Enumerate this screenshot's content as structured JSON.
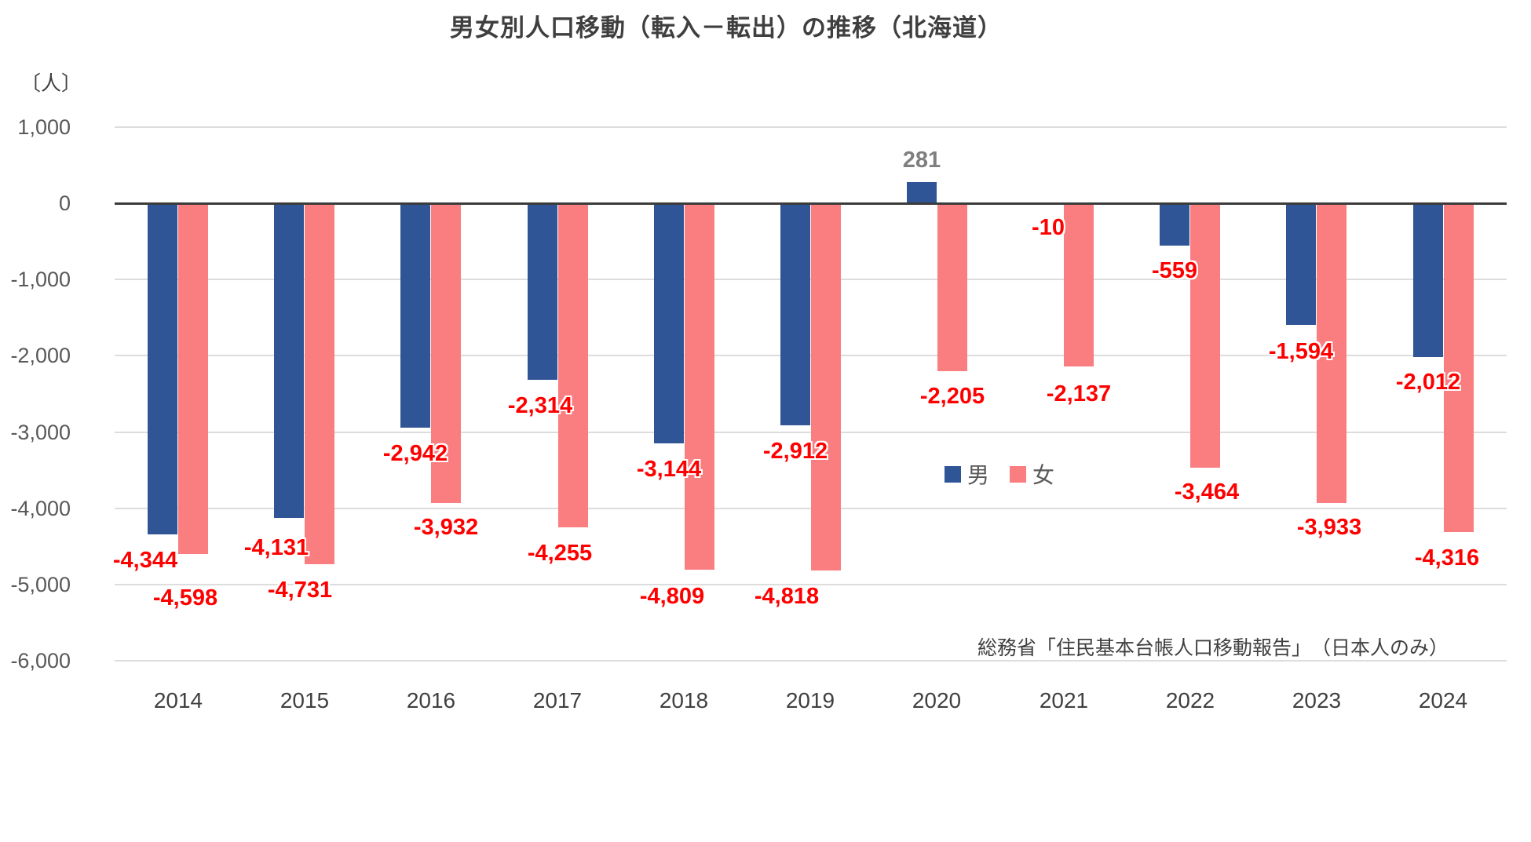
{
  "title": "男女別人口移動（転入－転出）の推移（北海道）",
  "unit_label": "〔人〕",
  "source": "総務省「住民基本台帳人口移動報告」　（日本人のみ）",
  "legend": {
    "male": "男",
    "female": "女"
  },
  "colors": {
    "male_bar": "#2f5597",
    "female_bar": "#fa7d80",
    "negative_label": "#ff0000",
    "positive_label": "#7f7f7f",
    "axis_line": "#3b3b3b",
    "gridline": "#dddddd",
    "tick_text": "#595959"
  },
  "chart_data": {
    "type": "bar",
    "categories": [
      "2014",
      "2015",
      "2016",
      "2017",
      "2018",
      "2019",
      "2020",
      "2021",
      "2022",
      "2023",
      "2024"
    ],
    "series": [
      {
        "name": "男",
        "values": [
          -4344,
          -4131,
          -2942,
          -2314,
          -3144,
          -2912,
          281,
          -10,
          -559,
          -1594,
          -2012
        ],
        "labels": [
          "-4,344",
          "-4,131",
          "-2,942",
          "-2,314",
          "-3,144",
          "-2,912",
          "281",
          "-10",
          "-559",
          "-1,594",
          "-2,012"
        ]
      },
      {
        "name": "女",
        "values": [
          -4598,
          -4731,
          -3932,
          -4255,
          -4809,
          -4818,
          -2205,
          -2137,
          -3464,
          -3933,
          -4316
        ],
        "labels": [
          "-4,598",
          "-4,731",
          "-3,932",
          "-4,255",
          "-4,809",
          "-4,818",
          "-2,205",
          "-2,137",
          "-3,464",
          "-3,933",
          "-4,316"
        ]
      }
    ],
    "yticks": [
      {
        "value": 1000,
        "label": "1,000"
      },
      {
        "value": 0,
        "label": "0"
      },
      {
        "value": -1000,
        "label": "-1,000"
      },
      {
        "value": -2000,
        "label": "-2,000"
      },
      {
        "value": -3000,
        "label": "-3,000"
      },
      {
        "value": -4000,
        "label": "-4,000"
      },
      {
        "value": -5000,
        "label": "-5,000"
      },
      {
        "value": -6000,
        "label": "-6,000"
      }
    ],
    "ylim": [
      -6000,
      1000
    ],
    "grid": true,
    "legend_position": "inside-lower-right"
  },
  "layout_hints": {
    "male_label_dx": [
      -22,
      -16,
      0,
      -3,
      0,
      0,
      0,
      0,
      0,
      0,
      0
    ],
    "male_label_dy": [
      33,
      38,
      33,
      33,
      33,
      33,
      -28,
      30,
      32,
      34,
      32
    ],
    "female_label_dx": [
      -10,
      -25,
      0,
      -17,
      -35,
      -50,
      0,
      0,
      2,
      -3,
      -15
    ],
    "female_label_dy": [
      56,
      33,
      31,
      33,
      34,
      33,
      32,
      35,
      31,
      31,
      33
    ]
  }
}
